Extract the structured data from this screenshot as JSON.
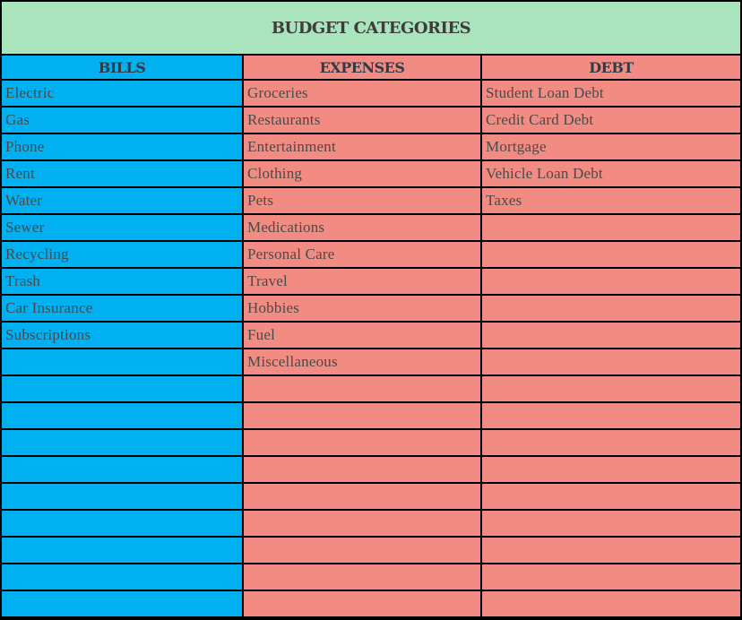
{
  "title": "BUDGET CATEGORIES",
  "colors": {
    "title_bg": "#a9e4bd",
    "bills_bg": "#00b0f0",
    "expenses_bg": "#f28b82",
    "debt_bg": "#f28b82",
    "grid_lines": "#000000"
  },
  "columns": [
    {
      "key": "bills",
      "header": "BILLS",
      "items": [
        "Electric",
        "Gas",
        "Phone",
        "Rent",
        "Water",
        "Sewer",
        "Recycling",
        "Trash",
        "Car Insurance",
        "Subscriptions",
        "",
        "",
        "",
        "",
        "",
        "",
        "",
        "",
        "",
        ""
      ]
    },
    {
      "key": "expenses",
      "header": "EXPENSES",
      "items": [
        "Groceries",
        "Restaurants",
        "Entertainment",
        "Clothing",
        "Pets",
        "Medications",
        "Personal Care",
        "Travel",
        "Hobbies",
        "Fuel",
        "Miscellaneous",
        "",
        "",
        "",
        "",
        "",
        "",
        "",
        "",
        ""
      ]
    },
    {
      "key": "debt",
      "header": "DEBT",
      "items": [
        "Student Loan Debt",
        "Credit Card Debt",
        "Mortgage",
        "Vehicle Loan Debt",
        "Taxes",
        "",
        "",
        "",
        "",
        "",
        "",
        "",
        "",
        "",
        "",
        "",
        "",
        "",
        "",
        ""
      ]
    }
  ]
}
